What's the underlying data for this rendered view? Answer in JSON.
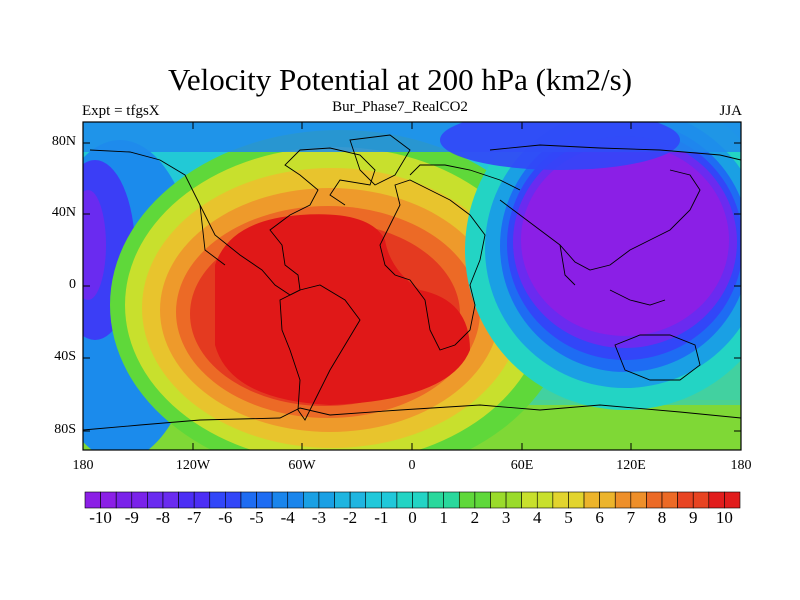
{
  "title": "Velocity Potential at 200 hPa (km2/s)",
  "subtitle_left": "Expt = tfgsX",
  "subtitle_center": "Bur_Phase7_RealCO2",
  "subtitle_right": "JJA",
  "lat_labels": [
    "80N",
    "40N",
    "0",
    "40S",
    "80S"
  ],
  "lon_labels": [
    "180",
    "120W",
    "60W",
    "0",
    "60E",
    "120E",
    "180"
  ],
  "colorbar": {
    "labels": [
      "-10",
      "-9",
      "-8",
      "-7",
      "-6",
      "-5",
      "-4",
      "-3",
      "-2",
      "-1",
      "0",
      "1",
      "2",
      "3",
      "4",
      "5",
      "6",
      "7",
      "8",
      "9",
      "10"
    ],
    "colors": [
      "#8b1fe6",
      "#7a22ea",
      "#6a2bf0",
      "#4c2ef5",
      "#3246f8",
      "#1e6cf3",
      "#1a85ec",
      "#1aa0e4",
      "#1fb5e0",
      "#20c8da",
      "#23d4c4",
      "#2ad89c",
      "#5fd83a",
      "#9adb2b",
      "#c8e02d",
      "#e2d42e",
      "#ecb42c",
      "#ee8f2a",
      "#ec6a26",
      "#e84422",
      "#e11c1c"
    ]
  },
  "colors": {
    "max_center": "#e01818",
    "min_center": "#8a1ee8",
    "coast": "#000000"
  }
}
